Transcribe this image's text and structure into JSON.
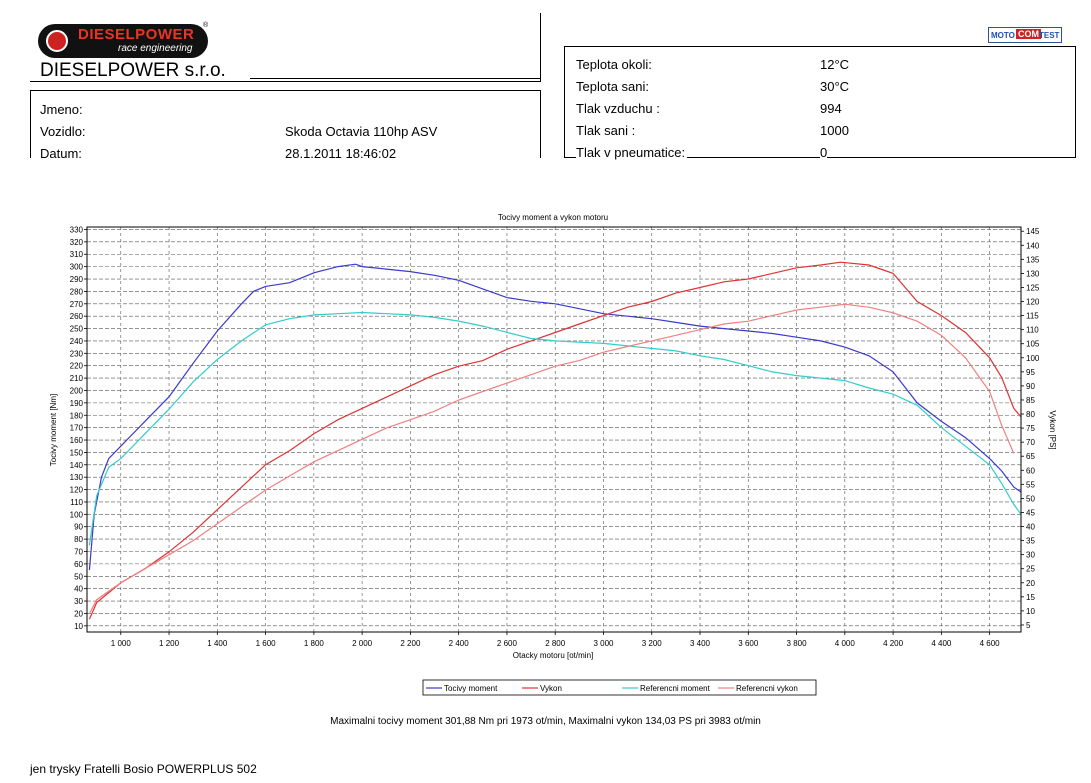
{
  "header": {
    "logo_line1": "DIESELPOWER",
    "logo_line2": "race engineering",
    "registered": "®",
    "company": "DIESELPOWER s.r.o.",
    "badge": [
      "MOTO",
      "COM",
      "TEST"
    ]
  },
  "info": {
    "name_label": "Jmeno:",
    "name_value": "",
    "vehicle_label": "Vozidlo:",
    "vehicle_value": "Skoda Octavia 110hp ASV",
    "date_label": "Datum:",
    "date_value": "28.1.2011 18:46:02"
  },
  "conditions": {
    "ambient_temp_label": "Teplota okoli:",
    "ambient_temp_value": "12°C",
    "intake_temp_label": "Teplota sani:",
    "intake_temp_value": "30°C",
    "air_pressure_label": "Tlak vzduchu :",
    "air_pressure_value": "994",
    "intake_pressure_label": "Tlak sani :",
    "intake_pressure_value": "1000",
    "tyre_pressure_label": "Tlak v pneumatice:",
    "tyre_pressure_value": "0"
  },
  "chart_data": {
    "type": "line",
    "title": "Tocivy moment a vykon motoru",
    "xlabel": "Otacky motoru [ot/min]",
    "ylabel_left": "Tocivy moment [Nm]",
    "ylabel_right": "Vykon [PS]",
    "xlim": [
      860,
      4730
    ],
    "ylim_left": [
      5,
      332
    ],
    "ylim_right": [
      2.5,
      146.5
    ],
    "grid": true,
    "legend_position": "bottom",
    "x_ticks": [
      1000,
      1200,
      1400,
      1600,
      1800,
      2000,
      2200,
      2400,
      2600,
      2800,
      3000,
      3200,
      3400,
      3600,
      3800,
      4000,
      4200,
      4400,
      4600
    ],
    "x_tick_labels": [
      "1 000",
      "1 200",
      "1 400",
      "1 600",
      "1 800",
      "2 000",
      "2 200",
      "2 400",
      "2 600",
      "2 800",
      "3 000",
      "3 200",
      "3 400",
      "3 600",
      "3 800",
      "4 000",
      "4 200",
      "4 400",
      "4 600"
    ],
    "y_left_ticks": [
      10,
      20,
      30,
      40,
      50,
      60,
      70,
      80,
      90,
      100,
      110,
      120,
      130,
      140,
      150,
      160,
      170,
      180,
      190,
      200,
      210,
      220,
      230,
      240,
      250,
      260,
      270,
      280,
      290,
      300,
      310,
      320,
      330
    ],
    "y_right_ticks": [
      5,
      10,
      15,
      20,
      25,
      30,
      35,
      40,
      45,
      50,
      55,
      60,
      65,
      70,
      75,
      80,
      85,
      90,
      95,
      100,
      105,
      110,
      115,
      120,
      125,
      130,
      135,
      140,
      145
    ],
    "series": [
      {
        "name": "Tocivy moment",
        "axis": "left",
        "color": "#3a3acc",
        "x": [
          870,
          890,
          920,
          950,
          1000,
          1100,
          1200,
          1300,
          1400,
          1500,
          1550,
          1600,
          1700,
          1800,
          1900,
          1973,
          2000,
          2100,
          2200,
          2300,
          2400,
          2500,
          2600,
          2700,
          2800,
          2900,
          3000,
          3100,
          3200,
          3300,
          3400,
          3500,
          3600,
          3700,
          3800,
          3900,
          4000,
          4100,
          4200,
          4300,
          4400,
          4500,
          4600,
          4650,
          4700,
          4730
        ],
        "y": [
          55,
          100,
          130,
          145,
          155,
          175,
          195,
          222,
          248,
          270,
          280,
          284,
          287,
          295,
          300,
          302,
          300,
          298,
          296,
          293,
          289,
          282,
          275,
          272,
          270,
          266,
          262,
          260,
          258,
          255,
          252,
          250,
          248,
          246,
          243,
          240,
          235,
          228,
          215,
          190,
          175,
          162,
          145,
          135,
          122,
          118
        ]
      },
      {
        "name": "Vykon",
        "axis": "right",
        "color": "#dd3333",
        "x": [
          870,
          900,
          1000,
          1100,
          1200,
          1300,
          1400,
          1500,
          1600,
          1700,
          1800,
          1900,
          2000,
          2100,
          2200,
          2300,
          2400,
          2500,
          2600,
          2700,
          2800,
          2900,
          3000,
          3100,
          3200,
          3300,
          3400,
          3500,
          3600,
          3700,
          3800,
          3900,
          3983,
          4100,
          4200,
          4300,
          4400,
          4500,
          4600,
          4650,
          4700,
          4730
        ],
        "y": [
          7,
          13,
          20,
          25,
          31,
          38,
          46,
          54,
          62,
          67,
          73,
          78,
          82,
          86,
          90,
          94,
          97,
          99,
          103,
          106,
          109,
          112,
          115,
          118,
          120,
          123,
          125,
          127,
          128,
          130,
          132,
          133,
          134,
          133,
          130,
          120,
          115,
          109,
          100,
          93,
          82,
          79
        ]
      },
      {
        "name": "Referencni moment",
        "axis": "left",
        "color": "#33cccc",
        "x": [
          870,
          900,
          950,
          1000,
          1100,
          1200,
          1300,
          1400,
          1500,
          1600,
          1700,
          1800,
          1900,
          2000,
          2100,
          2200,
          2300,
          2400,
          2500,
          2600,
          2700,
          2800,
          2900,
          3000,
          3100,
          3200,
          3300,
          3400,
          3500,
          3600,
          3700,
          3800,
          3900,
          4000,
          4100,
          4200,
          4300,
          4400,
          4500,
          4600,
          4650,
          4700,
          4730
        ],
        "y": [
          75,
          115,
          138,
          145,
          165,
          185,
          207,
          225,
          240,
          253,
          258,
          261,
          262,
          263,
          262,
          261,
          259,
          256,
          252,
          247,
          242,
          240,
          239,
          238,
          236,
          234,
          232,
          228,
          225,
          220,
          215,
          212,
          210,
          208,
          202,
          197,
          188,
          170,
          155,
          140,
          125,
          108,
          100
        ]
      },
      {
        "name": "Referencni vykon",
        "axis": "right",
        "color": "#f08080",
        "x": [
          870,
          900,
          1000,
          1100,
          1200,
          1300,
          1400,
          1500,
          1600,
          1700,
          1800,
          1900,
          2000,
          2100,
          2200,
          2300,
          2400,
          2500,
          2600,
          2700,
          2800,
          2900,
          3000,
          3100,
          3200,
          3300,
          3400,
          3500,
          3600,
          3700,
          3800,
          3900,
          4000,
          4100,
          4200,
          4300,
          4400,
          4500,
          4600,
          4650,
          4700
        ],
        "y": [
          9,
          14,
          20,
          25,
          30,
          35,
          41,
          47,
          53,
          58,
          63,
          67,
          71,
          75,
          78,
          81,
          85,
          88,
          91,
          94,
          97,
          99,
          102,
          104,
          106,
          108,
          110,
          112,
          113,
          115,
          117,
          118,
          119,
          118,
          116,
          113,
          108,
          100,
          88,
          76,
          66
        ]
      }
    ],
    "summary": "Maximalni tocivy moment 301,88 Nm pri 1973 ot/min,  Maximalni vykon 134,03 PS pri 3983 ot/min"
  },
  "footer": {
    "note": "jen trysky Fratelli Bosio POWERPLUS 502"
  }
}
